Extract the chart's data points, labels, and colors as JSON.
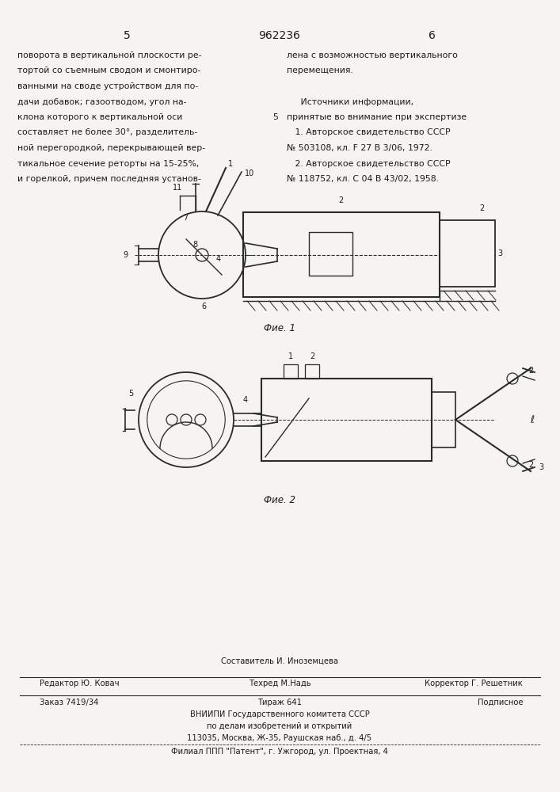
{
  "page_number_left": "5",
  "page_number_center": "962236",
  "page_number_right": "6",
  "background_color": "#f5f4f0",
  "text_color": "#1a1a1a",
  "line_color": "#2a2a2a",
  "left_column_text": [
    "поворота в вертикальной плоскости ре-",
    "тортой со съемным сводом и смонтиро-",
    "ванными на своде устройством для по-",
    "дачи добавок; газоотводом, угол на-",
    "клона которого к вертикальной оси",
    "составляет не более 30°, разделитель-",
    "ной перегородкой, перекрывающей вер-",
    "тикальное сечение реторты на 15-25%,",
    "и горелкой, причем последняя установ-"
  ],
  "right_column_line1": "лена с возможностью вертикального",
  "right_column_line2": "перемещения.",
  "right_column_sources_title": "     Источники информации,",
  "right_column_sources_sub": "принятые во внимание при экспертизе",
  "right_column_ref1a": "   1. Авторское свидетельство СССР",
  "right_column_ref1b": "№ 503108, кл. F 27 В 3/06, 1972.",
  "right_column_ref2a": "   2. Авторское свидетельство СССР",
  "right_column_ref2b": "№ 118752, кл. С 04 В 43/02, 1958.",
  "fig1_caption": "Фие. 1",
  "fig2_caption": "Фие. 2",
  "footer_editor": "Редактор Ю. Ковач",
  "footer_compiler_label": "Составитель И. Иноземцева",
  "footer_techred": "Техред М.Надь",
  "footer_corrector": "Корректор Г. Решетник",
  "footer_order": "Заказ 7419/34",
  "footer_tirazh": "Тираж 641",
  "footer_podp": "Подписное",
  "footer_org1": "ВНИИПИ Государственного комитета СССР",
  "footer_org2": "по делам изобретений и открытий",
  "footer_org3": "113035, Москва, Ж-35, Раушская наб., д. 4/5",
  "footer_org4": "Филиал ППП \"Патент\", г. Ужгород, ул. Проектная, 4"
}
